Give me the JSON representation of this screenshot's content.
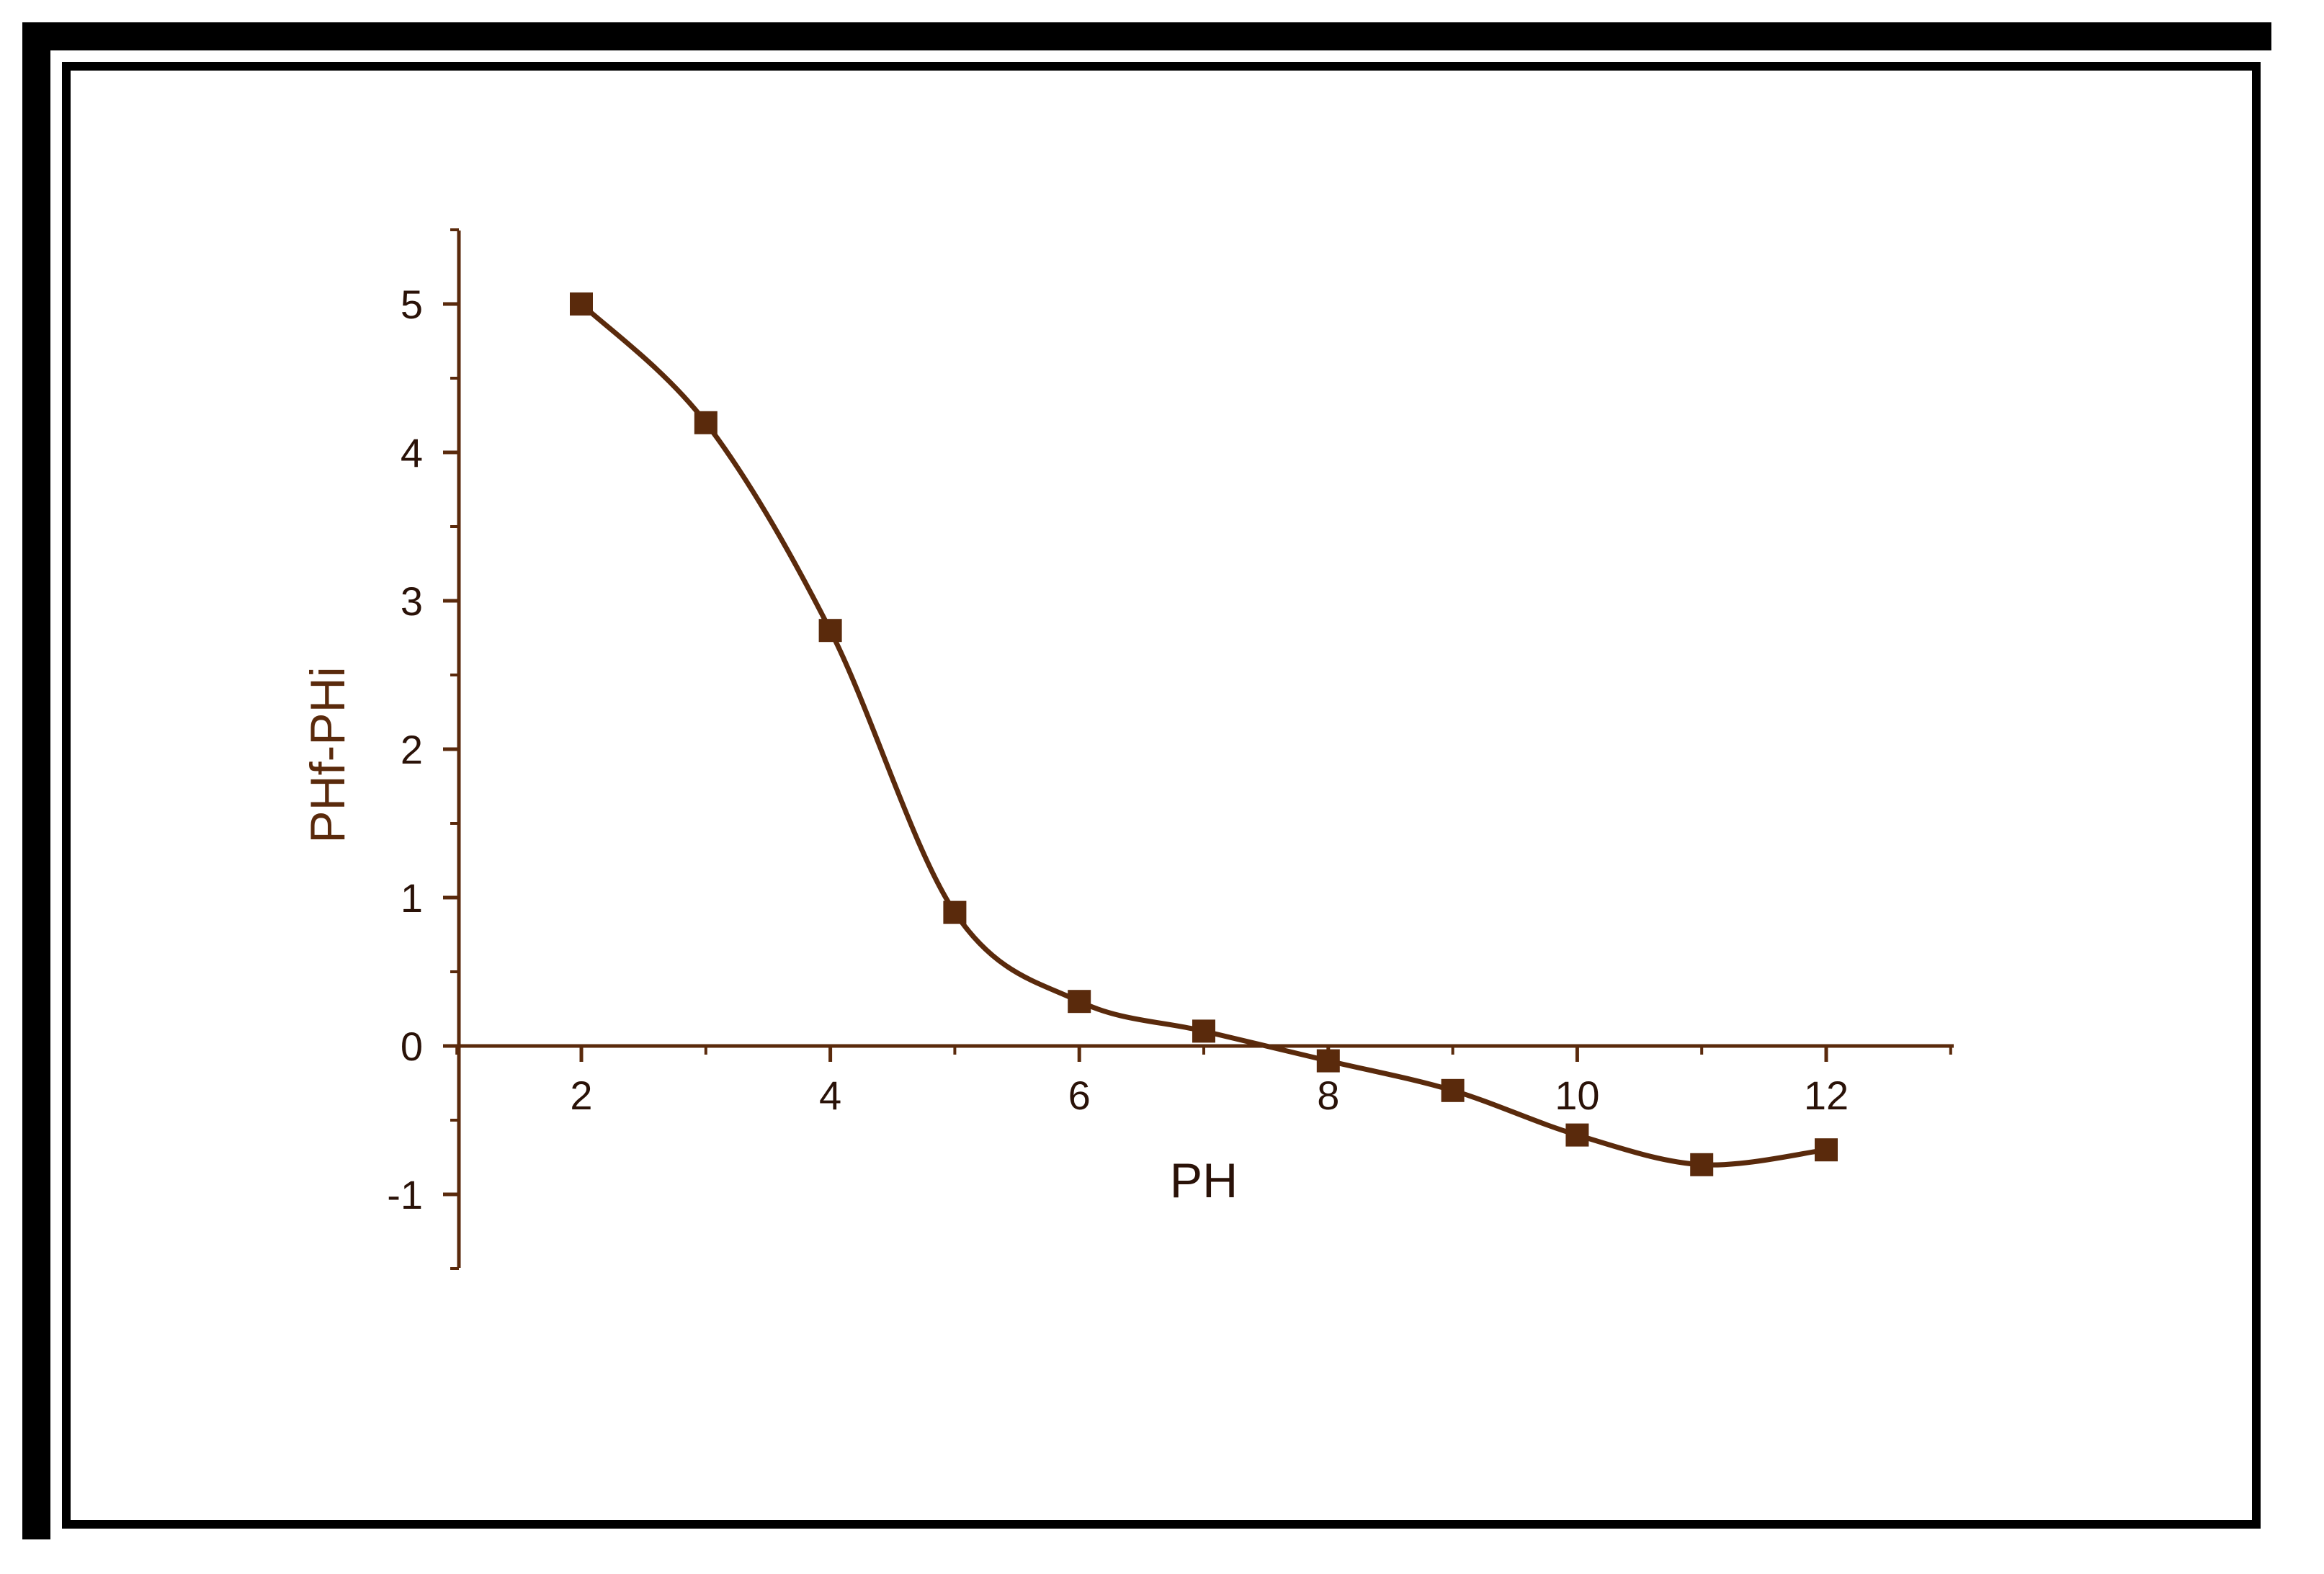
{
  "chart_data": {
    "type": "line",
    "title": "",
    "xlabel": "PH",
    "ylabel": "PHf-PHi",
    "xlim": [
      1,
      13
    ],
    "ylim": [
      -1.5,
      5.5
    ],
    "xticks": [
      2,
      4,
      6,
      8,
      10,
      12
    ],
    "xtick_labels": [
      "2",
      "4",
      "6",
      "8",
      "10",
      "12"
    ],
    "yticks": [
      -1,
      0,
      1,
      2,
      3,
      4,
      5
    ],
    "ytick_labels": [
      "-1",
      "0",
      "1",
      "2",
      "3",
      "4",
      "5"
    ],
    "grid": false,
    "legend": "none",
    "color": "#5a2a0c",
    "marker": "square",
    "smooth": true,
    "series": [
      {
        "x": [
          2,
          3,
          4,
          5,
          6,
          7,
          8,
          9,
          10,
          11,
          12
        ],
        "y": [
          5.0,
          4.2,
          2.8,
          0.9,
          0.3,
          0.1,
          -0.1,
          -0.3,
          -0.6,
          -0.8,
          -0.7
        ]
      }
    ]
  }
}
